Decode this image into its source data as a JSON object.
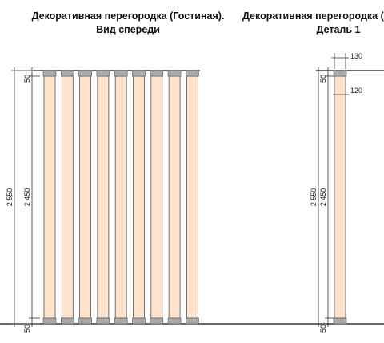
{
  "title_left": {
    "line1": "Декоративная перегородка (Гостиная).",
    "line2": "Вид спереди"
  },
  "title_right": {
    "line1": "Декоративная перегородка (Деталь",
    "line2": "Деталь 1"
  },
  "left_dimensions": {
    "total": "2 550",
    "top": "50",
    "middle": "2 450",
    "bottom": "50"
  },
  "right_dimensions": {
    "total": "2 550",
    "top": "50",
    "middle": "2 450",
    "bottom": "50",
    "width_outer": "130",
    "width_inner": "120"
  }
}
